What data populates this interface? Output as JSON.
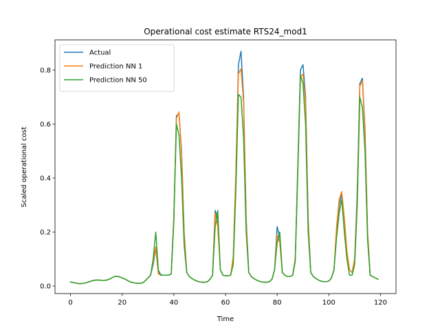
{
  "chart_data": {
    "type": "line",
    "title": "Operational cost estimate RTS24_mod1",
    "xlabel": "Time",
    "ylabel": "Scaled operational cost",
    "xlim": [
      -6,
      126
    ],
    "ylim": [
      -0.028,
      0.912
    ],
    "xticks": [
      0,
      20,
      40,
      60,
      80,
      100,
      120
    ],
    "yticks": [
      0.0,
      0.2,
      0.4,
      0.6,
      0.8
    ],
    "ytick_labels": [
      "0.0",
      "0.2",
      "0.4",
      "0.6",
      "0.8"
    ],
    "grid": false,
    "legend_position": "top-left",
    "x": [
      0,
      1,
      2,
      3,
      4,
      5,
      6,
      7,
      8,
      9,
      10,
      11,
      12,
      13,
      14,
      15,
      16,
      17,
      18,
      19,
      20,
      21,
      22,
      23,
      24,
      25,
      26,
      27,
      28,
      29,
      30,
      31,
      32,
      33,
      34,
      35,
      36,
      37,
      38,
      39,
      40,
      41,
      42,
      43,
      44,
      45,
      46,
      47,
      48,
      49,
      50,
      51,
      52,
      53,
      54,
      55,
      56,
      57,
      58,
      59,
      60,
      61,
      62,
      63,
      64,
      65,
      66,
      67,
      68,
      69,
      70,
      71,
      72,
      73,
      74,
      75,
      76,
      77,
      78,
      79,
      80,
      81,
      82,
      83,
      84,
      85,
      86,
      87,
      88,
      89,
      90,
      91,
      92,
      93,
      94,
      95,
      96,
      97,
      98,
      99,
      100,
      101,
      102,
      103,
      104,
      105,
      106,
      107,
      108,
      109,
      110,
      111,
      112,
      113,
      114,
      115,
      116,
      117,
      118,
      119
    ],
    "series": [
      {
        "name": "Actual",
        "color": "#1f77b4",
        "values": [
          0.015,
          0.013,
          0.011,
          0.009,
          0.009,
          0.01,
          0.012,
          0.015,
          0.018,
          0.021,
          0.022,
          0.022,
          0.021,
          0.021,
          0.022,
          0.025,
          0.03,
          0.035,
          0.036,
          0.034,
          0.03,
          0.026,
          0.021,
          0.016,
          0.013,
          0.011,
          0.01,
          0.01,
          0.012,
          0.02,
          0.03,
          0.04,
          0.08,
          0.14,
          0.05,
          0.042,
          0.04,
          0.04,
          0.04,
          0.045,
          0.25,
          0.63,
          0.64,
          0.5,
          0.2,
          0.05,
          0.035,
          0.028,
          0.022,
          0.018,
          0.015,
          0.014,
          0.014,
          0.016,
          0.025,
          0.04,
          0.28,
          0.25,
          0.06,
          0.04,
          0.038,
          0.038,
          0.04,
          0.1,
          0.4,
          0.82,
          0.87,
          0.7,
          0.25,
          0.05,
          0.035,
          0.028,
          0.022,
          0.018,
          0.015,
          0.014,
          0.014,
          0.016,
          0.025,
          0.06,
          0.22,
          0.18,
          0.05,
          0.04,
          0.035,
          0.035,
          0.04,
          0.1,
          0.45,
          0.8,
          0.82,
          0.7,
          0.25,
          0.05,
          0.035,
          0.028,
          0.022,
          0.018,
          0.016,
          0.016,
          0.018,
          0.03,
          0.06,
          0.2,
          0.3,
          0.34,
          0.25,
          0.12,
          0.06,
          0.05,
          0.1,
          0.35,
          0.75,
          0.77,
          0.58,
          0.2,
          0.04,
          0.035,
          0.03,
          0.025
        ]
      },
      {
        "name": "Prediction NN 1",
        "color": "#ff7f0e",
        "values": [
          0.015,
          0.013,
          0.011,
          0.009,
          0.009,
          0.01,
          0.012,
          0.015,
          0.018,
          0.021,
          0.022,
          0.022,
          0.021,
          0.021,
          0.022,
          0.025,
          0.03,
          0.035,
          0.036,
          0.034,
          0.03,
          0.026,
          0.021,
          0.016,
          0.013,
          0.011,
          0.01,
          0.01,
          0.012,
          0.02,
          0.03,
          0.04,
          0.09,
          0.145,
          0.045,
          0.04,
          0.04,
          0.04,
          0.04,
          0.045,
          0.26,
          0.62,
          0.645,
          0.49,
          0.19,
          0.05,
          0.035,
          0.028,
          0.022,
          0.018,
          0.015,
          0.014,
          0.014,
          0.016,
          0.025,
          0.04,
          0.27,
          0.22,
          0.06,
          0.04,
          0.038,
          0.038,
          0.04,
          0.11,
          0.42,
          0.785,
          0.805,
          0.68,
          0.24,
          0.05,
          0.035,
          0.028,
          0.022,
          0.018,
          0.015,
          0.014,
          0.014,
          0.016,
          0.025,
          0.06,
          0.19,
          0.16,
          0.05,
          0.04,
          0.035,
          0.035,
          0.04,
          0.1,
          0.44,
          0.775,
          0.785,
          0.68,
          0.24,
          0.05,
          0.035,
          0.028,
          0.022,
          0.018,
          0.016,
          0.016,
          0.018,
          0.03,
          0.06,
          0.22,
          0.32,
          0.35,
          0.25,
          0.13,
          0.06,
          0.05,
          0.1,
          0.33,
          0.74,
          0.76,
          0.56,
          0.2,
          0.04,
          0.035,
          0.03,
          0.025
        ]
      },
      {
        "name": "Prediction NN 50",
        "color": "#2ca02c",
        "values": [
          0.015,
          0.013,
          0.011,
          0.009,
          0.009,
          0.01,
          0.012,
          0.015,
          0.018,
          0.021,
          0.022,
          0.022,
          0.021,
          0.021,
          0.022,
          0.025,
          0.03,
          0.035,
          0.036,
          0.034,
          0.03,
          0.026,
          0.021,
          0.016,
          0.013,
          0.011,
          0.01,
          0.01,
          0.012,
          0.02,
          0.03,
          0.04,
          0.1,
          0.2,
          0.06,
          0.04,
          0.04,
          0.04,
          0.04,
          0.045,
          0.24,
          0.6,
          0.56,
          0.4,
          0.15,
          0.05,
          0.035,
          0.028,
          0.022,
          0.018,
          0.015,
          0.014,
          0.014,
          0.016,
          0.025,
          0.04,
          0.22,
          0.28,
          0.06,
          0.04,
          0.038,
          0.038,
          0.04,
          0.08,
          0.35,
          0.71,
          0.7,
          0.55,
          0.2,
          0.05,
          0.035,
          0.028,
          0.022,
          0.018,
          0.015,
          0.014,
          0.014,
          0.016,
          0.025,
          0.06,
          0.16,
          0.2,
          0.05,
          0.04,
          0.035,
          0.035,
          0.04,
          0.09,
          0.42,
          0.78,
          0.75,
          0.6,
          0.2,
          0.05,
          0.035,
          0.028,
          0.022,
          0.018,
          0.016,
          0.016,
          0.018,
          0.03,
          0.06,
          0.18,
          0.27,
          0.32,
          0.2,
          0.1,
          0.04,
          0.04,
          0.08,
          0.3,
          0.7,
          0.66,
          0.5,
          0.17,
          0.04,
          0.035,
          0.03,
          0.025
        ]
      }
    ]
  }
}
